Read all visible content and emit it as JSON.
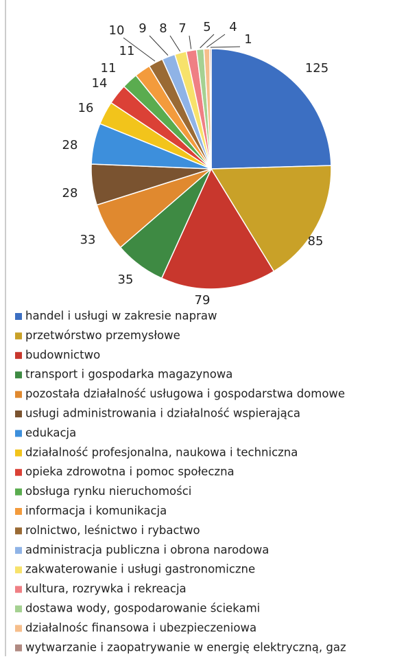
{
  "chart_data": {
    "type": "pie",
    "categories": [
      "handel i usługi w zakresie napraw",
      "przetwórstwo przemysłowe",
      "budownictwo",
      "transport i gospodarka magazynowa",
      "pozostała działalność usługowa i gospodarstwa domowe",
      "usługi administrowania i działalność wspierająca",
      "edukacja",
      "działalność profesjonalna, naukowa i techniczna",
      "opieka zdrowotna i pomoc społeczna",
      "obsługa rynku nieruchomości",
      "informacja i komunikacja",
      "rolnictwo, leśnictwo i rybactwo",
      "administracja publiczna i obrona narodowa",
      "zakwaterowanie i usługi gastronomiczne",
      "kultura, rozrywka i rekreacja",
      "dostawa wody, gospodarowanie ściekami",
      "działalnośc finansowa i ubezpieczeniowa",
      "wytwarzanie i zaopatrywanie w energię elektryczną, gaz"
    ],
    "values": [
      125,
      85,
      79,
      35,
      33,
      28,
      28,
      16,
      14,
      11,
      11,
      10,
      9,
      8,
      7,
      5,
      4,
      1
    ],
    "colors": [
      "#3c6fc2",
      "#c9a128",
      "#c8372d",
      "#3e8a43",
      "#e0892f",
      "#7a5330",
      "#3d8fdc",
      "#f2c41b",
      "#db4136",
      "#5aac4f",
      "#f39b3c",
      "#9a6a34",
      "#8fb3e6",
      "#f7e26b",
      "#ef7f84",
      "#a5d192",
      "#f6be8b",
      "#b08a82"
    ],
    "legend": "bottom"
  }
}
